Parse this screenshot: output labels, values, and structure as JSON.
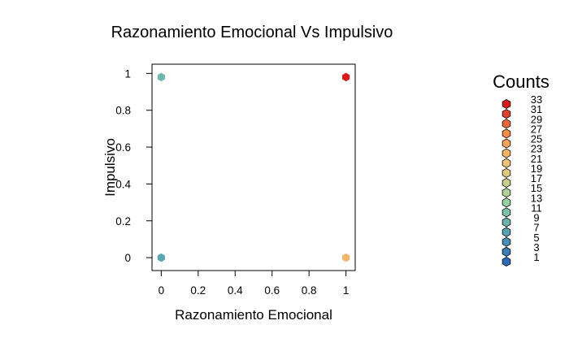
{
  "chart_data": {
    "type": "scatter",
    "subtype": "hexbin",
    "title": "Razonamiento Emocional Vs Impulsivo",
    "xlabel": "Razonamiento Emocional",
    "ylabel": "Impulsivo",
    "xlim": [
      -0.05,
      1.05
    ],
    "ylim": [
      -0.07,
      1.05
    ],
    "x_ticks": [
      0,
      0.2,
      0.4,
      0.6,
      0.8,
      1
    ],
    "y_ticks": [
      0,
      0.2,
      0.4,
      0.6,
      0.8,
      1
    ],
    "x_tick_labels": [
      "0",
      "0.2",
      "0.4",
      "0.6",
      "0.8",
      "1"
    ],
    "y_tick_labels": [
      "0",
      "0.2",
      "0.4",
      "0.6",
      "0.8",
      "1"
    ],
    "points": [
      {
        "x": 0,
        "y": 0.98,
        "count": 11,
        "color": "#6db8ad"
      },
      {
        "x": 1,
        "y": 0.98,
        "count": 33,
        "color": "#d7191c"
      },
      {
        "x": 0,
        "y": 0,
        "count": 7,
        "color": "#5aa4b2"
      },
      {
        "x": 1,
        "y": 0,
        "count": 21,
        "color": "#f1b66b"
      }
    ],
    "legend": {
      "title": "Counts",
      "position": "right",
      "labels": [
        "33",
        "31",
        "29",
        "27",
        "25",
        "23",
        "21",
        "19",
        "17",
        "15",
        "13",
        "11",
        "9",
        "7",
        "5",
        "3",
        "1"
      ],
      "colors": [
        "#d7191c",
        "#e0432c",
        "#ea6a3b",
        "#f28c4b",
        "#f7a45a",
        "#f5b566",
        "#efc478",
        "#dfc67f",
        "#c9cd8a",
        "#b0d498",
        "#97d0a4",
        "#80c1ac",
        "#6db3ad",
        "#5aa3b2",
        "#4990b5",
        "#3a7fb6",
        "#2b6db5"
      ]
    },
    "grid": false
  }
}
